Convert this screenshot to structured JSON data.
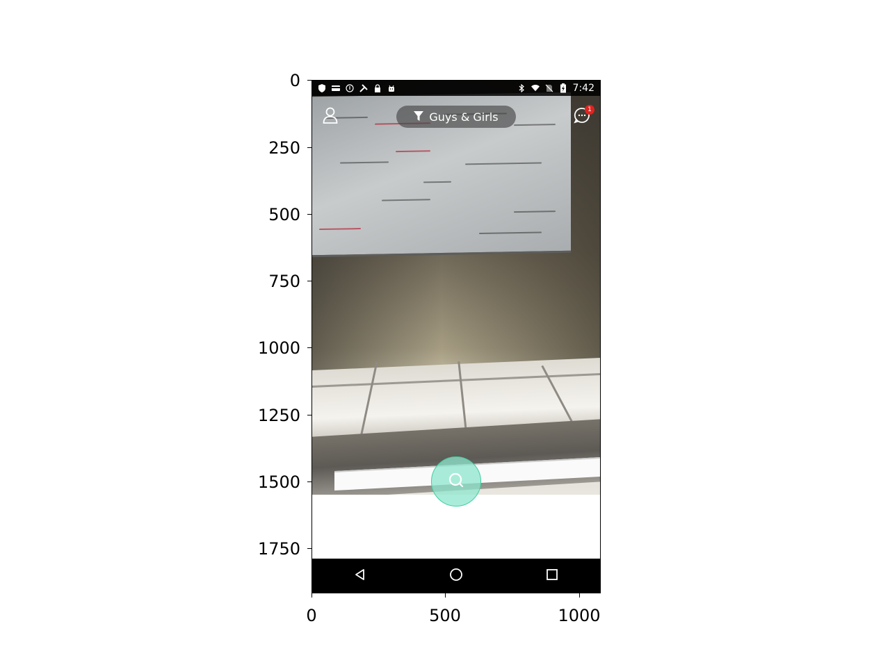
{
  "plot": {
    "y_ticks": [
      "0",
      "250",
      "500",
      "750",
      "1000",
      "1250",
      "1500",
      "1750"
    ],
    "x_ticks": [
      "0",
      "500",
      "1000"
    ]
  },
  "status_bar": {
    "left_icons": [
      "shield-icon",
      "card-icon",
      "info-icon",
      "tools-icon",
      "lock-icon",
      "android-icon"
    ],
    "right_icons": [
      "bluetooth-icon",
      "wifi-icon",
      "no-sim-icon",
      "battery-charging-icon"
    ],
    "time": "7:42"
  },
  "header": {
    "profile_icon": "person-icon",
    "filter_icon": "funnel-icon",
    "filter_label": "Guys & Girls",
    "chat_icon": "chat-bubble-icon",
    "chat_badge": "1"
  },
  "main": {
    "search_button_icon": "search-icon",
    "accent_color": "#8de6ce"
  },
  "nav_bar": {
    "buttons": [
      "back-icon",
      "home-icon",
      "recents-icon"
    ]
  }
}
